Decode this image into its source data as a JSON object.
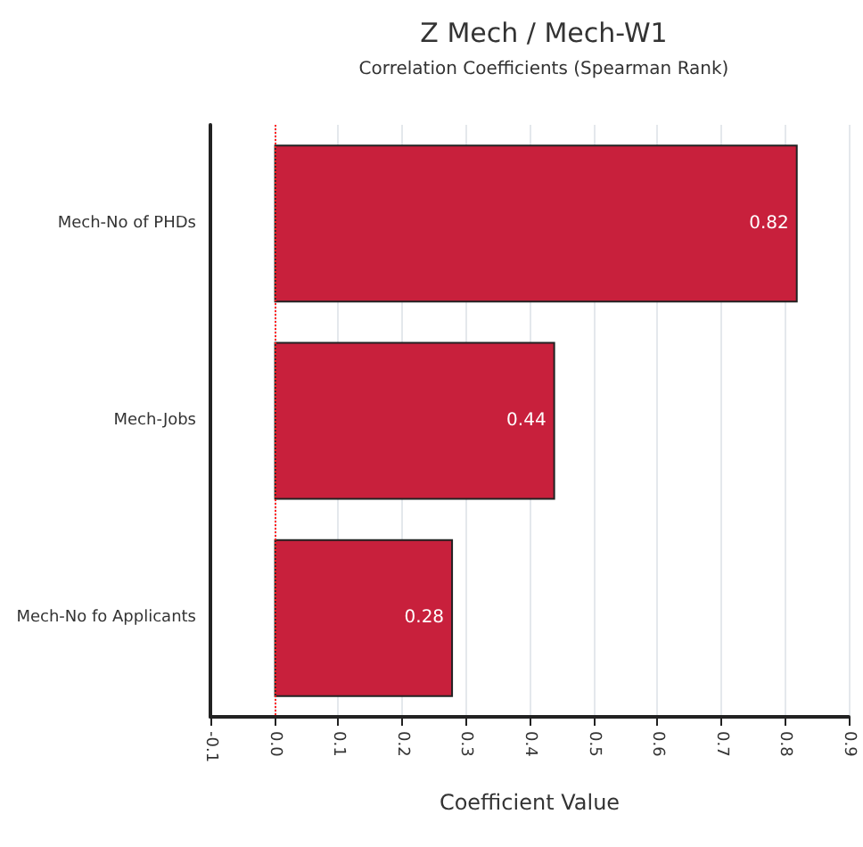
{
  "chart_data": {
    "type": "bar",
    "orientation": "horizontal",
    "title": "Z Mech / Mech-W1",
    "subtitle": "Correlation Coefficients (Spearman Rank)",
    "xlabel": "Coefficient Value",
    "categories": [
      "Mech-No of PHDs",
      "Mech-Jobs",
      "Mech-No fo Applicants"
    ],
    "values": [
      0.82,
      0.44,
      0.28
    ],
    "color": "#c8203c",
    "data_labels": true,
    "xlim": [
      -0.1,
      0.9
    ],
    "xticks": [
      {
        "value": -0.1,
        "label": "-0.1"
      },
      {
        "value": 0,
        "label": "0.0"
      },
      {
        "value": 0.1,
        "label": "0.1"
      },
      {
        "value": 0.2,
        "label": "0.2"
      },
      {
        "value": 0.3,
        "label": "0.3"
      },
      {
        "value": 0.4,
        "label": "0.4"
      },
      {
        "value": 0.5,
        "label": "0.5"
      },
      {
        "value": 0.6,
        "label": "0.6"
      },
      {
        "value": 0.7,
        "label": "0.7"
      },
      {
        "value": 0.8,
        "label": "0.8"
      },
      {
        "value": 0.9,
        "label": "0.9"
      }
    ],
    "grid": "x",
    "ref_lines": [
      {
        "axis": "x",
        "value": 0,
        "color": "#ff2020",
        "line_style": "dotted"
      }
    ]
  }
}
